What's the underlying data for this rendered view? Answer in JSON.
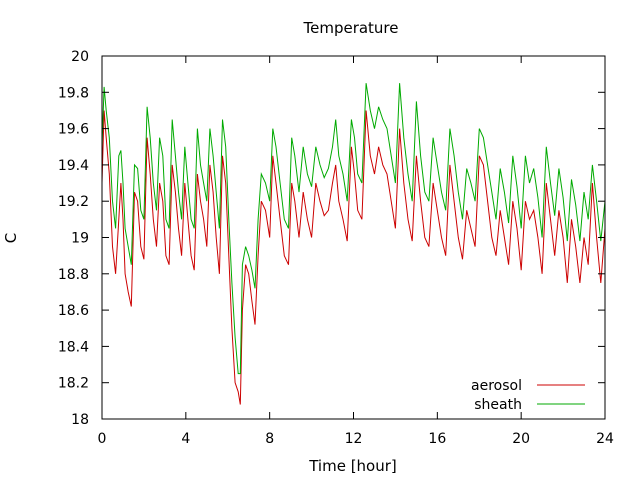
{
  "chart_data": {
    "type": "line",
    "title": "Temperature",
    "xlabel": "Time [hour]",
    "ylabel": "C",
    "xlim": [
      0,
      24
    ],
    "ylim": [
      18,
      20
    ],
    "xticks": [
      0,
      4,
      8,
      12,
      16,
      20,
      24
    ],
    "yticks": [
      18,
      18.2,
      18.4,
      18.6,
      18.8,
      19,
      19.2,
      19.4,
      19.6,
      19.8,
      20
    ],
    "xtick_labels": [
      "0",
      "4",
      "8",
      "12",
      "16",
      "20",
      "24"
    ],
    "ytick_labels": [
      "18",
      "18.2",
      "18.4",
      "18.6",
      "18.8",
      "19",
      "19.2",
      "19.4",
      "19.6",
      "19.8",
      "20"
    ],
    "grid": false,
    "legend_position": "bottom-right",
    "series": [
      {
        "name": "aerosol",
        "color": "#cc0000",
        "x": [
          0.0,
          0.1,
          0.2,
          0.35,
          0.5,
          0.65,
          0.8,
          0.9,
          1.0,
          1.1,
          1.25,
          1.4,
          1.55,
          1.7,
          1.85,
          2.0,
          2.15,
          2.3,
          2.45,
          2.6,
          2.75,
          2.9,
          3.05,
          3.2,
          3.35,
          3.5,
          3.65,
          3.8,
          3.95,
          4.1,
          4.25,
          4.4,
          4.55,
          4.7,
          4.85,
          5.0,
          5.15,
          5.3,
          5.45,
          5.6,
          5.75,
          5.9,
          6.05,
          6.2,
          6.35,
          6.5,
          6.6,
          6.7,
          6.85,
          7.0,
          7.15,
          7.3,
          7.45,
          7.6,
          7.8,
          8.0,
          8.15,
          8.3,
          8.5,
          8.7,
          8.9,
          9.05,
          9.2,
          9.4,
          9.6,
          9.8,
          10.0,
          10.2,
          10.4,
          10.6,
          10.8,
          11.0,
          11.15,
          11.3,
          11.5,
          11.7,
          11.9,
          12.05,
          12.2,
          12.4,
          12.6,
          12.8,
          13.0,
          13.2,
          13.4,
          13.6,
          13.8,
          14.0,
          14.2,
          14.4,
          14.6,
          14.8,
          15.0,
          15.2,
          15.4,
          15.6,
          15.8,
          16.0,
          16.2,
          16.4,
          16.6,
          16.8,
          17.0,
          17.2,
          17.4,
          17.6,
          17.8,
          18.0,
          18.2,
          18.4,
          18.6,
          18.8,
          19.0,
          19.2,
          19.4,
          19.6,
          19.8,
          20.0,
          20.2,
          20.4,
          20.6,
          20.8,
          21.0,
          21.2,
          21.4,
          21.6,
          21.8,
          22.0,
          22.2,
          22.4,
          22.6,
          22.8,
          23.0,
          23.2,
          23.4,
          23.6,
          23.8,
          24.0
        ],
        "y": [
          19.3,
          19.7,
          19.55,
          19.35,
          18.95,
          18.8,
          19.1,
          19.3,
          19.1,
          18.8,
          18.7,
          18.62,
          19.25,
          19.2,
          18.95,
          18.88,
          19.55,
          19.35,
          19.1,
          18.95,
          19.3,
          19.2,
          18.9,
          18.85,
          19.4,
          19.25,
          19.05,
          18.9,
          19.3,
          19.1,
          18.9,
          18.82,
          19.35,
          19.2,
          19.1,
          18.95,
          19.4,
          19.25,
          19.0,
          18.8,
          19.45,
          19.3,
          18.9,
          18.5,
          18.2,
          18.15,
          18.08,
          18.6,
          18.85,
          18.8,
          18.65,
          18.52,
          18.9,
          19.2,
          19.15,
          19.0,
          19.45,
          19.3,
          19.1,
          18.9,
          18.85,
          19.3,
          19.2,
          19.0,
          19.25,
          19.1,
          19.0,
          19.3,
          19.2,
          19.12,
          19.15,
          19.3,
          19.4,
          19.2,
          19.1,
          18.98,
          19.5,
          19.35,
          19.15,
          19.1,
          19.7,
          19.45,
          19.35,
          19.5,
          19.4,
          19.35,
          19.2,
          19.05,
          19.6,
          19.3,
          19.1,
          18.98,
          19.45,
          19.2,
          19.0,
          18.95,
          19.3,
          19.15,
          19.0,
          18.9,
          19.4,
          19.2,
          19.0,
          18.88,
          19.15,
          19.05,
          18.95,
          19.45,
          19.4,
          19.2,
          19.0,
          18.9,
          19.15,
          19.0,
          18.85,
          19.2,
          19.05,
          18.82,
          19.2,
          19.1,
          19.15,
          19.0,
          18.8,
          19.3,
          19.1,
          18.9,
          19.15,
          19.0,
          18.75,
          19.1,
          18.95,
          18.75,
          19.0,
          18.85,
          19.3,
          19.0,
          18.75,
          19.05
        ]
      },
      {
        "name": "sheath",
        "color": "#00aa00",
        "x": [
          0.0,
          0.1,
          0.2,
          0.35,
          0.5,
          0.65,
          0.8,
          0.9,
          1.0,
          1.1,
          1.25,
          1.4,
          1.55,
          1.7,
          1.85,
          2.0,
          2.15,
          2.3,
          2.45,
          2.6,
          2.75,
          2.9,
          3.05,
          3.2,
          3.35,
          3.5,
          3.65,
          3.8,
          3.95,
          4.1,
          4.25,
          4.4,
          4.55,
          4.7,
          4.85,
          5.0,
          5.15,
          5.3,
          5.45,
          5.6,
          5.75,
          5.9,
          6.05,
          6.2,
          6.35,
          6.5,
          6.6,
          6.7,
          6.85,
          7.0,
          7.15,
          7.3,
          7.45,
          7.6,
          7.8,
          8.0,
          8.15,
          8.3,
          8.5,
          8.7,
          8.9,
          9.05,
          9.2,
          9.4,
          9.6,
          9.8,
          10.0,
          10.2,
          10.4,
          10.6,
          10.8,
          11.0,
          11.15,
          11.3,
          11.5,
          11.7,
          11.9,
          12.05,
          12.2,
          12.4,
          12.6,
          12.8,
          13.0,
          13.2,
          13.4,
          13.6,
          13.8,
          14.0,
          14.2,
          14.4,
          14.6,
          14.8,
          15.0,
          15.2,
          15.4,
          15.6,
          15.8,
          16.0,
          16.2,
          16.4,
          16.6,
          16.8,
          17.0,
          17.2,
          17.4,
          17.6,
          17.8,
          18.0,
          18.2,
          18.4,
          18.6,
          18.8,
          19.0,
          19.2,
          19.4,
          19.6,
          19.8,
          20.0,
          20.2,
          20.4,
          20.6,
          20.8,
          21.0,
          21.2,
          21.4,
          21.6,
          21.8,
          22.0,
          22.2,
          22.4,
          22.6,
          22.8,
          23.0,
          23.2,
          23.4,
          23.6,
          23.8,
          24.0
        ],
        "y": [
          19.5,
          19.83,
          19.7,
          19.55,
          19.2,
          19.05,
          19.45,
          19.48,
          19.3,
          19.05,
          18.95,
          18.85,
          19.4,
          19.38,
          19.15,
          19.1,
          19.72,
          19.55,
          19.3,
          19.15,
          19.55,
          19.45,
          19.1,
          19.05,
          19.65,
          19.45,
          19.25,
          19.1,
          19.5,
          19.3,
          19.1,
          19.05,
          19.6,
          19.4,
          19.3,
          19.2,
          19.6,
          19.45,
          19.25,
          19.05,
          19.65,
          19.5,
          19.1,
          18.75,
          18.45,
          18.25,
          18.25,
          18.85,
          18.95,
          18.9,
          18.82,
          18.72,
          19.1,
          19.35,
          19.3,
          19.2,
          19.6,
          19.5,
          19.3,
          19.1,
          19.05,
          19.55,
          19.45,
          19.25,
          19.5,
          19.35,
          19.28,
          19.5,
          19.4,
          19.33,
          19.38,
          19.5,
          19.65,
          19.45,
          19.35,
          19.2,
          19.65,
          19.55,
          19.35,
          19.3,
          19.85,
          19.7,
          19.6,
          19.72,
          19.65,
          19.6,
          19.45,
          19.3,
          19.85,
          19.55,
          19.35,
          19.2,
          19.75,
          19.45,
          19.25,
          19.2,
          19.55,
          19.4,
          19.25,
          19.15,
          19.6,
          19.45,
          19.25,
          19.1,
          19.38,
          19.3,
          19.2,
          19.6,
          19.55,
          19.4,
          19.25,
          19.1,
          19.38,
          19.25,
          19.08,
          19.45,
          19.28,
          19.05,
          19.45,
          19.3,
          19.38,
          19.22,
          19.0,
          19.5,
          19.3,
          19.12,
          19.38,
          19.22,
          18.98,
          19.32,
          19.18,
          18.98,
          19.25,
          19.1,
          19.4,
          19.2,
          18.98,
          19.2
        ]
      }
    ]
  }
}
